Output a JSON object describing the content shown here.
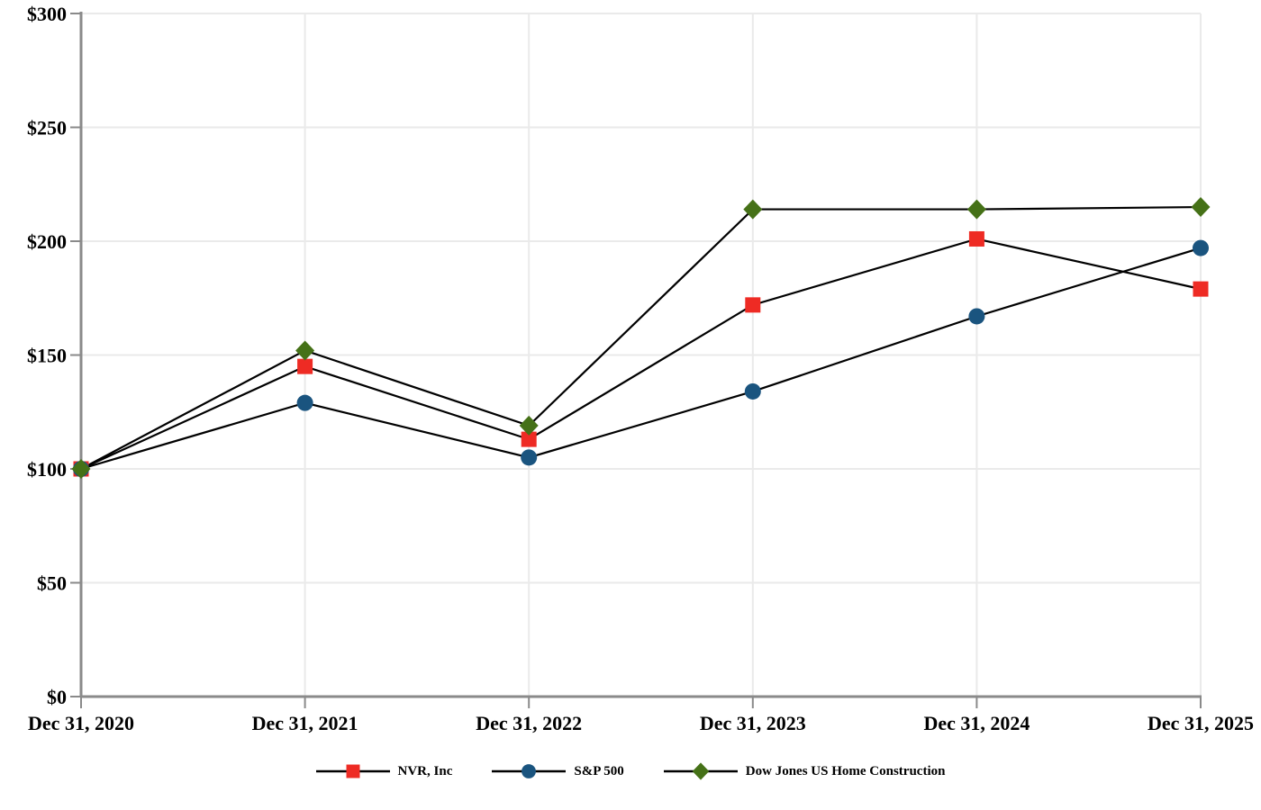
{
  "chart_data": {
    "type": "line",
    "title": "",
    "categories": [
      "Dec 31, 2020",
      "Dec 31, 2021",
      "Dec 31, 2022",
      "Dec 31, 2023",
      "Dec 31, 2024",
      "Dec 31, 2025"
    ],
    "series": [
      {
        "name": "NVR, Inc",
        "marker": "square",
        "color": "#EE2B24",
        "values": [
          100,
          145,
          113,
          172,
          201,
          179
        ]
      },
      {
        "name": "S&P 500",
        "marker": "circle",
        "color": "#1A547F",
        "values": [
          100,
          129,
          105,
          134,
          167,
          197
        ]
      },
      {
        "name": "Dow Jones US Home Construction",
        "marker": "diamond",
        "color": "#457117",
        "values": [
          100,
          152,
          119,
          214,
          214,
          215
        ]
      }
    ],
    "y_ticks": [
      0,
      50,
      100,
      150,
      200,
      250,
      300
    ],
    "y_tick_labels": [
      "$0",
      "$50",
      "$100",
      "$150",
      "$200",
      "$250",
      "$300"
    ],
    "ylim": [
      0,
      300
    ],
    "grid": true,
    "legend_position": "bottom",
    "line_color": "#000000",
    "gridline_color": "#EAEAEA",
    "axis_color": "#8A8A8A"
  }
}
